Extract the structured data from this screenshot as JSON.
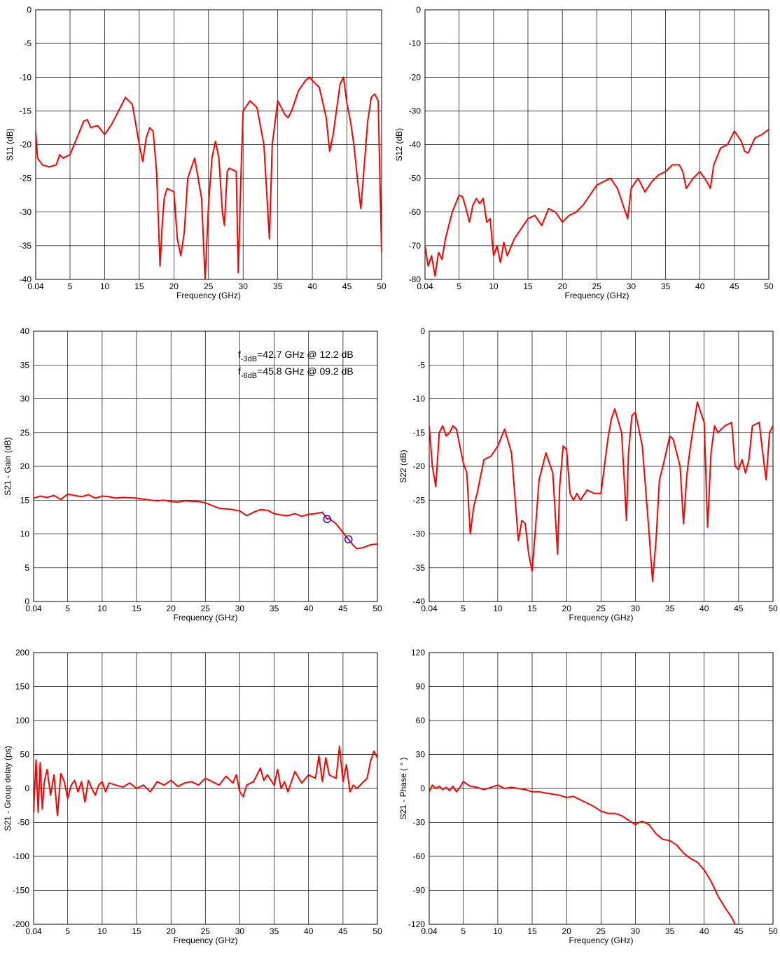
{
  "chart_data": [
    {
      "type": "line",
      "xlabel": "Frequency (GHz)",
      "ylabel": "S11 (dB)",
      "xlim": [
        0.04,
        50
      ],
      "ylim": [
        -40,
        0
      ],
      "xticks": [
        0.04,
        5,
        10,
        15,
        20,
        25,
        30,
        35,
        40,
        45,
        50
      ],
      "xtick_labels": [
        "0.04",
        "5",
        "10",
        "15",
        "20",
        "25",
        "30",
        "35",
        "40",
        "45",
        "50"
      ],
      "yticks": [
        0,
        -5,
        -10,
        -15,
        -20,
        -25,
        -30,
        -35,
        -40
      ],
      "ytick_labels": [
        "0",
        "-5",
        "-10",
        "-15",
        "-20",
        "-25",
        "-30",
        "-35",
        "-40"
      ],
      "grid": true,
      "color": "#ff0000",
      "series": [
        {
          "x": [
            0.04,
            0.3,
            1,
            2,
            3,
            3.5,
            4,
            5,
            6,
            7,
            7.5,
            8,
            8.5,
            9,
            10,
            11,
            12,
            13,
            14,
            15,
            15.5,
            16,
            16.5,
            17,
            17.5,
            18,
            18.3,
            18.6,
            19,
            20,
            20.5,
            21,
            21.5,
            22,
            23,
            24,
            24.5,
            25,
            25.5,
            26,
            26.5,
            27,
            27.3,
            27.7,
            28,
            29,
            29.3,
            29.7,
            30,
            31,
            32,
            33,
            33.8,
            34.2,
            35,
            36,
            36.5,
            37,
            38,
            39,
            39.6,
            40,
            41,
            42,
            42.5,
            43,
            44,
            44.5,
            45,
            45.5,
            46,
            46.5,
            47,
            47.5,
            48,
            48.5,
            49,
            49.5,
            50
          ],
          "y": [
            -18,
            -22,
            -23,
            -23.3,
            -23,
            -21.5,
            -22,
            -21.5,
            -19,
            -16.5,
            -16.3,
            -17.5,
            -17.3,
            -17.2,
            -18.5,
            -17,
            -15,
            -13,
            -14,
            -20,
            -22.5,
            -19,
            -17.5,
            -18,
            -24,
            -38,
            -32,
            -28,
            -26.5,
            -27,
            -34,
            -36.5,
            -33,
            -25,
            -22,
            -28,
            -40,
            -29,
            -22,
            -19.5,
            -22,
            -30,
            -32,
            -24,
            -23.5,
            -24,
            -39,
            -24,
            -15,
            -13.5,
            -14.5,
            -20,
            -34,
            -20,
            -13.5,
            -15.5,
            -16,
            -15,
            -12,
            -10.5,
            -10,
            -10.5,
            -11.5,
            -16,
            -21,
            -18.5,
            -11,
            -10,
            -14,
            -16.5,
            -20,
            -25,
            -29.5,
            -23,
            -16.5,
            -13,
            -12.5,
            -13.5,
            -36
          ]
        }
      ]
    },
    {
      "type": "line",
      "xlabel": "Frequency (GHz)",
      "ylabel": "S12 (dB)",
      "xlim": [
        0.04,
        50
      ],
      "ylim": [
        -80,
        0
      ],
      "xticks": [
        0.04,
        5,
        10,
        15,
        20,
        25,
        30,
        35,
        40,
        45,
        50
      ],
      "xtick_labels": [
        "0.04",
        "5",
        "10",
        "15",
        "20",
        "25",
        "30",
        "35",
        "40",
        "45",
        "50"
      ],
      "yticks": [
        0,
        -10,
        -20,
        -30,
        -40,
        -50,
        -60,
        -70,
        -80
      ],
      "ytick_labels": [
        "0",
        "-10",
        "-20",
        "-30",
        "-40",
        "-50",
        "-60",
        "-70",
        "-80"
      ],
      "grid": true,
      "color": "#ff0000",
      "series": [
        {
          "x": [
            0.04,
            0.5,
            1,
            1.5,
            2,
            2.5,
            3,
            3.5,
            4,
            5,
            5.5,
            6,
            6.5,
            7,
            7.5,
            8,
            8.5,
            9,
            9.5,
            10,
            10.5,
            11,
            11.5,
            12,
            13,
            14,
            15,
            16,
            17,
            18,
            19,
            20,
            21,
            22,
            23,
            24,
            25,
            26,
            27,
            28,
            29,
            29.5,
            30,
            31,
            32,
            33,
            34,
            35,
            36,
            37,
            37.5,
            38,
            39,
            40,
            41,
            41.5,
            42,
            43,
            44,
            45,
            46,
            46.5,
            47,
            48,
            49,
            50
          ],
          "y": [
            -70,
            -76,
            -73,
            -79,
            -72,
            -74,
            -68,
            -64,
            -60,
            -55,
            -55.5,
            -59,
            -63,
            -58,
            -56,
            -57.5,
            -56,
            -63,
            -62,
            -73,
            -70,
            -75,
            -69,
            -73,
            -68,
            -65,
            -62,
            -61,
            -64,
            -59,
            -60,
            -63,
            -61,
            -60,
            -58,
            -55,
            -52,
            -51,
            -50,
            -53,
            -59,
            -62,
            -53,
            -50,
            -54,
            -51,
            -49,
            -48,
            -46,
            -46,
            -48,
            -53,
            -50,
            -48,
            -51,
            -53,
            -46,
            -41,
            -40,
            -36,
            -39,
            -42,
            -42.5,
            -38,
            -37,
            -35.5
          ]
        }
      ]
    },
    {
      "type": "line",
      "xlabel": "Frequency (GHz)",
      "ylabel": "S21 - Gain (dB)",
      "xlim": [
        0.04,
        50
      ],
      "ylim": [
        0,
        40
      ],
      "xticks": [
        0.04,
        5,
        10,
        15,
        20,
        25,
        30,
        35,
        40,
        45,
        50
      ],
      "xtick_labels": [
        "0.04",
        "5",
        "10",
        "15",
        "20",
        "25",
        "30",
        "35",
        "40",
        "45",
        "50"
      ],
      "yticks": [
        0,
        5,
        10,
        15,
        20,
        25,
        30,
        35,
        40
      ],
      "ytick_labels": [
        "0",
        "5",
        "10",
        "15",
        "20",
        "25",
        "30",
        "35",
        "40"
      ],
      "grid": true,
      "color": "#ff0000",
      "series": [
        {
          "x": [
            0.04,
            1,
            2,
            3,
            4,
            5,
            6,
            7,
            8,
            9,
            10,
            11,
            12,
            13,
            15,
            17,
            18,
            19,
            20,
            21,
            22,
            24,
            25,
            26,
            27,
            28,
            29,
            30,
            31,
            32,
            33,
            34,
            35,
            36,
            37,
            38,
            39,
            40,
            41,
            42,
            42.7,
            43,
            44,
            45,
            45.8,
            46.5,
            47,
            48,
            49,
            50
          ],
          "y": [
            15.3,
            15.6,
            15.4,
            15.7,
            15.1,
            15.9,
            15.7,
            15.5,
            15.8,
            15.3,
            15.6,
            15.5,
            15.3,
            15.4,
            15.3,
            15.0,
            14.9,
            15.0,
            14.8,
            14.7,
            14.9,
            14.8,
            14.6,
            14.2,
            13.8,
            13.7,
            13.6,
            13.4,
            12.7,
            13.2,
            13.6,
            13.5,
            13.0,
            12.8,
            12.7,
            13.0,
            12.6,
            12.9,
            13.0,
            13.2,
            12.2,
            12.3,
            11.5,
            10.2,
            9.2,
            8.3,
            7.8,
            8.0,
            8.4,
            8.5
          ]
        }
      ],
      "markers": [
        {
          "x": 42.7,
          "y": 12.2
        },
        {
          "x": 45.8,
          "y": 9.2
        }
      ],
      "annotations": [
        {
          "base": "f",
          "sub": "-3dB",
          "text": "=42.7 GHz @ 12.2 dB"
        },
        {
          "base": "f",
          "sub": "-6dB",
          "text": "=45.8 GHz @ 09.2 dB"
        }
      ]
    },
    {
      "type": "line",
      "xlabel": "Frequency (GHz)",
      "ylabel": "S22 (dB)",
      "xlim": [
        0.04,
        50
      ],
      "ylim": [
        -40,
        0
      ],
      "xticks": [
        0.04,
        5,
        10,
        15,
        20,
        25,
        30,
        35,
        40,
        45,
        50
      ],
      "xtick_labels": [
        "0.04",
        "5",
        "10",
        "15",
        "20",
        "25",
        "30",
        "35",
        "40",
        "45",
        "50"
      ],
      "yticks": [
        0,
        -5,
        -10,
        -15,
        -20,
        -25,
        -30,
        -35,
        -40
      ],
      "ytick_labels": [
        "0",
        "-5",
        "-10",
        "-15",
        "-20",
        "-25",
        "-30",
        "-35",
        "-40"
      ],
      "grid": true,
      "color": "#ff0000",
      "series": [
        {
          "x": [
            0.04,
            0.5,
            1,
            1.5,
            2,
            2.5,
            3,
            3.5,
            4,
            5,
            5.5,
            6,
            6.5,
            7,
            8,
            9,
            10,
            11,
            12,
            13,
            13.5,
            14,
            14.5,
            15,
            15.5,
            16,
            17,
            18,
            18.7,
            19,
            19.5,
            20,
            20.5,
            21,
            21.5,
            22,
            23,
            24,
            25,
            26,
            26.5,
            27,
            28,
            28.7,
            29,
            29.5,
            30,
            31,
            32,
            32.5,
            33,
            33.5,
            34,
            35,
            35.5,
            36,
            36.5,
            37,
            37.5,
            38,
            39,
            40,
            40.5,
            41,
            41.5,
            42,
            43,
            44,
            44.5,
            45,
            45.5,
            46,
            46.5,
            47,
            48,
            48.5,
            49,
            49.5,
            50
          ],
          "y": [
            -14,
            -20,
            -23,
            -15,
            -14,
            -15.5,
            -15,
            -14,
            -14.5,
            -19.5,
            -21,
            -30,
            -26,
            -24,
            -19,
            -18.5,
            -17,
            -14.5,
            -18,
            -31,
            -28,
            -28.5,
            -33,
            -35.5,
            -29,
            -22,
            -18,
            -21,
            -33,
            -23,
            -17,
            -17.5,
            -24,
            -25,
            -24,
            -25,
            -23.5,
            -24,
            -24,
            -16,
            -13,
            -11.5,
            -15,
            -28,
            -18,
            -12.5,
            -12,
            -17,
            -30,
            -37,
            -31,
            -22,
            -20,
            -15.5,
            -16,
            -18,
            -20,
            -28.5,
            -21,
            -17,
            -10.5,
            -13.5,
            -29,
            -18,
            -14,
            -15,
            -14,
            -13.5,
            -20,
            -20.5,
            -19,
            -21,
            -19,
            -14,
            -13.5,
            -18,
            -22,
            -15,
            -14
          ]
        }
      ]
    },
    {
      "type": "line",
      "xlabel": "Frequency (GHz)",
      "ylabel": "S21 - Group delay (ps)",
      "xlim": [
        0.04,
        50
      ],
      "ylim": [
        -200,
        200
      ],
      "xticks": [
        0.04,
        5,
        10,
        15,
        20,
        25,
        30,
        35,
        40,
        45,
        50
      ],
      "xtick_labels": [
        "0.04",
        "5",
        "10",
        "15",
        "20",
        "25",
        "30",
        "35",
        "40",
        "45",
        "50"
      ],
      "yticks": [
        200,
        150,
        100,
        50,
        0,
        -50,
        -100,
        -150,
        -200
      ],
      "ytick_labels": [
        "200",
        "150",
        "100",
        "50",
        "0",
        "-50",
        "-100",
        "-150",
        "-200"
      ],
      "grid": true,
      "color": "#ff0000",
      "series": [
        {
          "x": [
            0.04,
            0.4,
            0.7,
            1,
            1.3,
            1.6,
            2,
            2.5,
            3,
            3.5,
            4,
            4.5,
            5,
            5.5,
            6,
            6.5,
            7,
            7.5,
            8,
            8.5,
            9,
            9.5,
            10,
            10.5,
            11,
            12,
            13,
            14,
            15,
            16,
            17,
            18,
            19,
            20,
            21,
            22,
            23,
            24,
            25,
            26,
            27,
            28,
            29,
            29.5,
            30,
            30.5,
            31,
            32,
            33,
            33.5,
            34,
            35,
            35.5,
            36,
            36.5,
            37,
            38,
            39,
            40,
            41,
            41.5,
            42,
            42.5,
            43,
            44,
            44.5,
            45,
            45.5,
            46,
            46.5,
            47,
            48,
            48.5,
            49,
            49.5,
            50
          ],
          "y": [
            -35,
            42,
            -35,
            38,
            -30,
            10,
            28,
            -10,
            20,
            -40,
            22,
            10,
            -15,
            5,
            12,
            -5,
            10,
            -20,
            12,
            0,
            -10,
            5,
            10,
            -5,
            8,
            5,
            2,
            8,
            0,
            5,
            -5,
            10,
            5,
            12,
            3,
            8,
            10,
            5,
            15,
            10,
            5,
            18,
            8,
            20,
            -5,
            -12,
            5,
            10,
            30,
            12,
            20,
            5,
            28,
            0,
            10,
            -5,
            25,
            8,
            20,
            15,
            48,
            10,
            45,
            20,
            15,
            62,
            10,
            35,
            -5,
            5,
            0,
            10,
            15,
            40,
            55,
            45
          ]
        }
      ]
    },
    {
      "type": "line",
      "xlabel": "Frequency (GHz)",
      "ylabel": "S21 - Phase ( ° )",
      "xlim": [
        0.04,
        50
      ],
      "ylim": [
        -120,
        120
      ],
      "xticks": [
        0.04,
        5,
        10,
        15,
        20,
        25,
        30,
        35,
        40,
        45,
        50
      ],
      "xtick_labels": [
        "0.04",
        "5",
        "10",
        "15",
        "20",
        "25",
        "30",
        "35",
        "40",
        "45",
        "50"
      ],
      "yticks": [
        120,
        90,
        60,
        30,
        0,
        -30,
        -60,
        -90,
        -120
      ],
      "ytick_labels": [
        "120",
        "90",
        "60",
        "30",
        "0",
        "-30",
        "-60",
        "-90",
        "-120"
      ],
      "grid": true,
      "color": "#ff0000",
      "series": [
        {
          "x": [
            0.04,
            0.5,
            1,
            1.5,
            2,
            2.5,
            3,
            3.5,
            4,
            4.5,
            5,
            6,
            7,
            8,
            9,
            10,
            11,
            12,
            13,
            14,
            15,
            16,
            17,
            18,
            19,
            20,
            21,
            22,
            23,
            24,
            25,
            26,
            27,
            28,
            29,
            30,
            30.5,
            31,
            32,
            33,
            34,
            35,
            36,
            37,
            38,
            39,
            40,
            41,
            42,
            43,
            44,
            44.5
          ],
          "y": [
            -3,
            3,
            0,
            2,
            -1,
            1,
            -2,
            2,
            -3,
            1,
            6,
            2,
            1,
            -1,
            1,
            3,
            0,
            1,
            0,
            -1,
            -3,
            -3,
            -4,
            -5,
            -6,
            -8,
            -7,
            -10,
            -13,
            -16,
            -20,
            -22,
            -22,
            -24,
            -28,
            -32,
            -30,
            -29,
            -32,
            -40,
            -45,
            -46,
            -50,
            -57,
            -62,
            -65,
            -72,
            -82,
            -95,
            -105,
            -114,
            -120
          ]
        }
      ]
    }
  ]
}
